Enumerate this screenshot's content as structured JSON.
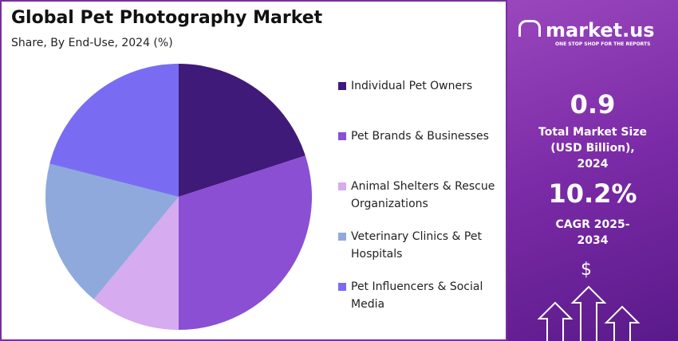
{
  "chart_data": {
    "type": "pie",
    "title": "Global Pet Photography Market",
    "subtitle": "Share, By End-Use, 2024 (%)",
    "categories": [
      "Individual Pet Owners",
      "Pet Brands & Businesses",
      "Animal Shelters & Rescue Organizations",
      "Veterinary Clinics & Pet Hospitals",
      "Pet Influencers & Social Media"
    ],
    "values": [
      20,
      30,
      11,
      18,
      21
    ],
    "colors": [
      "#3f1a78",
      "#8a4fd3",
      "#d6abef",
      "#8fa9dc",
      "#7a6cf2"
    ]
  },
  "sidebar": {
    "brand": "market.us",
    "tagline": "ONE STOP SHOP FOR THE REPORTS",
    "market_size": "0.9",
    "market_size_label": "Total Market Size (USD Billion), 2024",
    "cagr": "10.2%",
    "cagr_label": "CAGR 2025-2034",
    "icon": "$"
  }
}
